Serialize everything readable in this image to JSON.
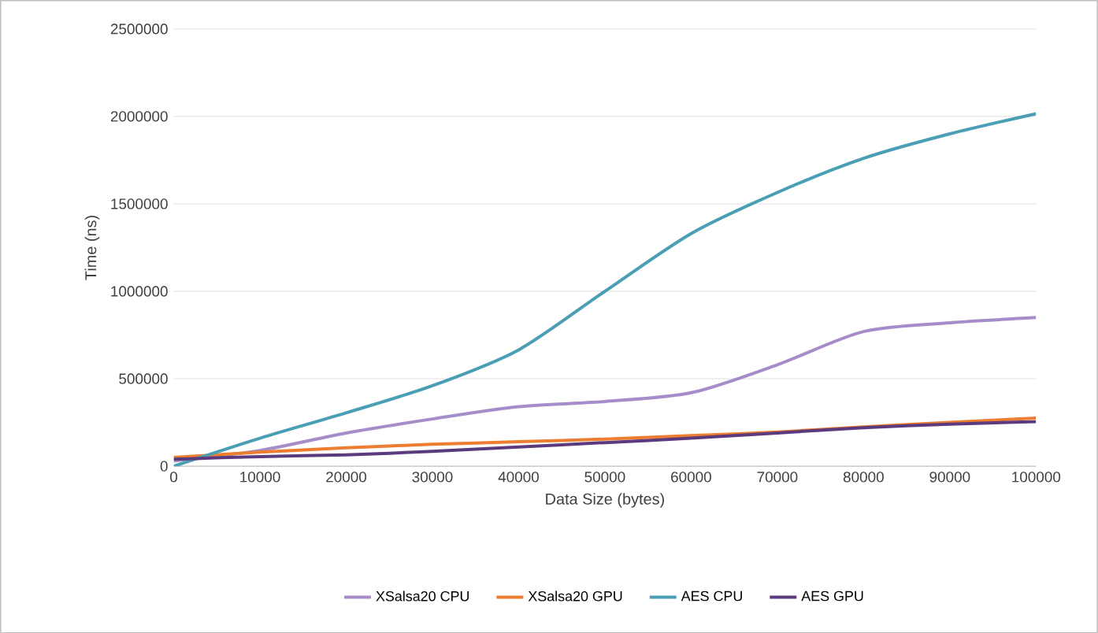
{
  "chart_data": {
    "type": "line",
    "xlabel": "Data Size (bytes)",
    "ylabel": "Time (ns)",
    "x": [
      0,
      10000,
      20000,
      30000,
      40000,
      50000,
      60000,
      70000,
      80000,
      90000,
      100000
    ],
    "series": [
      {
        "name": "XSalsa20 CPU",
        "color": "#a68cc8",
        "values": [
          30000,
          90000,
          190000,
          270000,
          340000,
          370000,
          420000,
          580000,
          770000,
          820000,
          850000
        ]
      },
      {
        "name": "XSalsa20 GPU",
        "color": "#ed7d31",
        "values": [
          50000,
          80000,
          105000,
          125000,
          140000,
          155000,
          175000,
          195000,
          225000,
          250000,
          275000
        ]
      },
      {
        "name": "AES CPU",
        "color": "#4a9fb5",
        "values": [
          0,
          160000,
          305000,
          460000,
          665000,
          1000000,
          1330000,
          1565000,
          1760000,
          1900000,
          2015000
        ]
      },
      {
        "name": "AES GPU",
        "color": "#5b3a7d",
        "values": [
          40000,
          55000,
          65000,
          85000,
          110000,
          135000,
          160000,
          190000,
          220000,
          240000,
          255000
        ]
      }
    ],
    "xlim": [
      0,
      100000
    ],
    "ylim": [
      0,
      2500000
    ],
    "xticks": [
      0,
      10000,
      20000,
      30000,
      40000,
      50000,
      60000,
      70000,
      80000,
      90000,
      100000
    ],
    "yticks": [
      0,
      500000,
      1000000,
      1500000,
      2000000,
      2500000
    ],
    "grid": "y",
    "legend": "bottom",
    "marker": "none",
    "line_style": "solid"
  }
}
